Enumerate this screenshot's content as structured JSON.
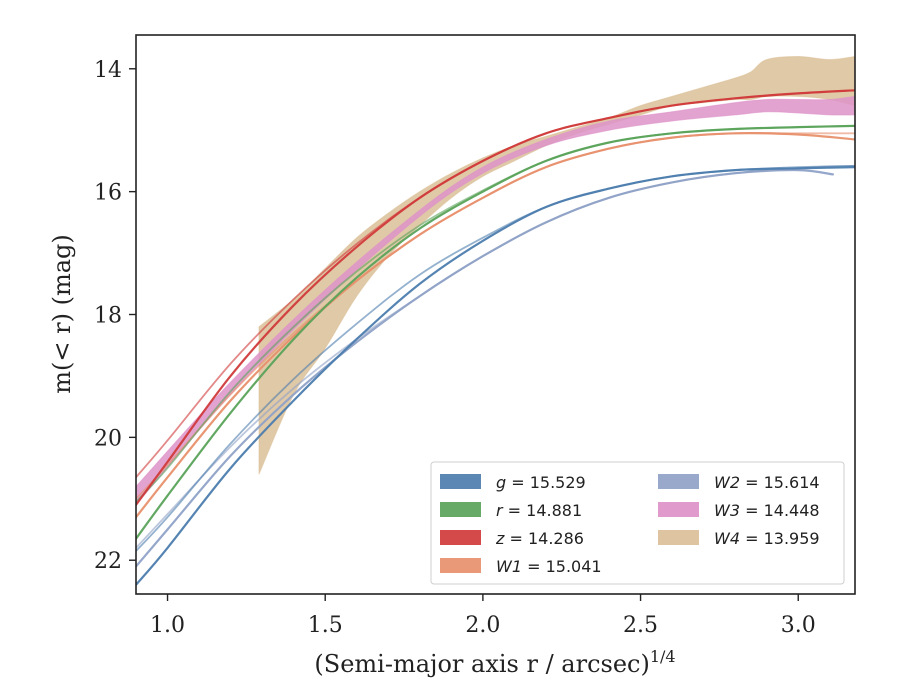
{
  "chart_data": {
    "type": "line",
    "title": "",
    "xlabel": "(Semi-major axis r / arcsec)",
    "xlabel_sup": "1/4",
    "ylabel": "m(< r) (mag)",
    "xlim": [
      0.9,
      3.18
    ],
    "ylim": [
      22.55,
      13.45
    ],
    "y_inverted": true,
    "x_ticks": [
      1.0,
      1.5,
      2.0,
      2.5,
      3.0
    ],
    "x_tick_labels": [
      "1.0",
      "1.5",
      "2.0",
      "2.5",
      "3.0"
    ],
    "y_ticks": [
      14,
      16,
      18,
      20,
      22
    ],
    "y_tick_labels": [
      "14",
      "16",
      "18",
      "20",
      "22"
    ],
    "grid": false,
    "legend_position": "lower-right",
    "series": [
      {
        "name": "g = 15.529",
        "label_var": "g",
        "label_val": "= 15.529",
        "color": "#4c7dae",
        "band": false,
        "curves": [
          {
            "x": [
              0.9,
              1.0,
              1.2,
              1.4,
              1.6,
              1.8,
              2.0,
              2.2,
              2.4,
              2.6,
              2.8,
              3.0,
              3.18
            ],
            "y": [
              22.4,
              21.8,
              20.5,
              19.4,
              18.4,
              17.5,
              16.8,
              16.25,
              15.95,
              15.75,
              15.65,
              15.62,
              15.6
            ]
          },
          {
            "x": [
              0.9,
              1.0,
              1.2,
              1.4,
              1.6,
              1.8,
              2.0,
              2.2,
              2.4,
              2.6,
              2.8,
              3.0,
              3.18
            ],
            "y": [
              21.85,
              21.3,
              20.1,
              19.05,
              18.15,
              17.35,
              16.75,
              16.25,
              15.95,
              15.75,
              15.65,
              15.6,
              15.58
            ]
          }
        ]
      },
      {
        "name": "r = 14.881",
        "label_var": "r",
        "label_val": "= 14.881",
        "color": "#5aa35a",
        "band": false,
        "curves": [
          {
            "x": [
              0.9,
              1.0,
              1.2,
              1.4,
              1.6,
              1.8,
              2.0,
              2.2,
              2.4,
              2.6,
              2.8,
              3.0,
              3.18
            ],
            "y": [
              21.65,
              20.95,
              19.6,
              18.4,
              17.4,
              16.6,
              16.0,
              15.5,
              15.2,
              15.05,
              14.98,
              14.95,
              14.93
            ]
          },
          {
            "x": [
              0.9,
              1.0,
              1.2,
              1.4,
              1.6,
              1.8,
              2.0,
              2.2,
              2.4,
              2.6,
              2.8,
              3.0,
              3.18
            ],
            "y": [
              21.05,
              20.5,
              19.25,
              18.2,
              17.3,
              16.55,
              15.98,
              15.5,
              15.2,
              15.05,
              14.98,
              14.95,
              14.93
            ]
          }
        ]
      },
      {
        "name": "z = 14.286",
        "label_var": "z",
        "label_val": "= 14.286",
        "color": "#d03b3b",
        "band": false,
        "curves": [
          {
            "x": [
              0.9,
              1.0,
              1.2,
              1.4,
              1.6,
              1.8,
              2.0,
              2.2,
              2.4,
              2.6,
              2.8,
              3.0,
              3.18
            ],
            "y": [
              21.1,
              20.4,
              19.0,
              17.85,
              16.9,
              16.1,
              15.5,
              15.05,
              14.8,
              14.6,
              14.48,
              14.4,
              14.35
            ]
          },
          {
            "x": [
              0.9,
              1.0,
              1.2,
              1.4,
              1.6,
              1.8,
              2.0,
              2.2,
              2.4,
              2.6,
              2.8,
              3.0,
              3.18
            ],
            "y": [
              20.65,
              20.05,
              18.8,
              17.75,
              16.85,
              16.1,
              15.5,
              15.05,
              14.8,
              14.6,
              14.48,
              14.4,
              14.35
            ]
          }
        ]
      },
      {
        "name": "W1 = 15.041",
        "label_var": "W1",
        "label_val": "= 15.041",
        "color": "#e8906c",
        "band": false,
        "curves": [
          {
            "x": [
              0.9,
              1.0,
              1.2,
              1.4,
              1.6,
              1.8,
              2.0,
              2.2,
              2.4,
              2.6,
              2.8,
              3.0,
              3.18
            ],
            "y": [
              21.3,
              20.65,
              19.4,
              18.35,
              17.45,
              16.7,
              16.1,
              15.6,
              15.3,
              15.12,
              15.05,
              15.07,
              15.15
            ]
          },
          {
            "x": [
              0.9,
              1.0,
              1.2,
              1.4,
              1.6,
              1.8,
              2.0,
              2.2,
              2.4,
              2.6,
              2.8,
              3.0,
              3.18
            ],
            "y": [
              21.0,
              20.45,
              19.3,
              18.3,
              17.45,
              16.7,
              16.1,
              15.6,
              15.3,
              15.12,
              15.05,
              15.05,
              15.05
            ]
          }
        ]
      },
      {
        "name": "W2 = 15.614",
        "label_var": "W2",
        "label_val": "= 15.614",
        "color": "#8fa2c7",
        "band": false,
        "curves": [
          {
            "x": [
              0.9,
              1.0,
              1.2,
              1.4,
              1.6,
              1.8,
              2.0,
              2.2,
              2.4,
              2.6,
              2.8,
              3.0,
              3.11
            ],
            "y": [
              22.1,
              21.5,
              20.3,
              19.3,
              18.45,
              17.7,
              17.05,
              16.5,
              16.1,
              15.85,
              15.7,
              15.65,
              15.72
            ]
          },
          {
            "x": [
              0.9,
              1.0,
              1.2,
              1.4,
              1.6,
              1.8,
              2.0,
              2.2,
              2.4,
              2.6,
              2.8,
              3.0,
              3.18
            ],
            "y": [
              21.8,
              21.25,
              20.15,
              19.2,
              18.4,
              17.7,
              17.05,
              16.5,
              16.1,
              15.85,
              15.7,
              15.62,
              15.58
            ]
          }
        ]
      },
      {
        "name": "W3 = 14.448",
        "label_var": "W3",
        "label_val": "= 14.448",
        "color": "#dd93c8",
        "band": true,
        "band_x": [
          0.9,
          1.2,
          1.5,
          1.8,
          2.0,
          2.2,
          2.4,
          2.6,
          2.8,
          2.9,
          3.0,
          3.1,
          3.18
        ],
        "band_lo": [
          20.8,
          19.1,
          17.6,
          16.3,
          15.6,
          15.15,
          14.85,
          14.7,
          14.55,
          14.5,
          14.5,
          14.5,
          14.45
        ],
        "band_hi": [
          21.1,
          19.3,
          17.75,
          16.4,
          15.7,
          15.25,
          15.0,
          14.85,
          14.75,
          14.7,
          14.72,
          14.75,
          14.75
        ]
      },
      {
        "name": "W4 = 13.959",
        "label_var": "W4",
        "label_val": "= 13.959",
        "color": "#dbbf98",
        "band": true,
        "band_x": [
          1.29,
          1.4,
          1.5,
          1.6,
          1.7,
          1.8,
          1.9,
          2.0,
          2.1,
          2.2,
          2.3,
          2.4,
          2.5,
          2.6,
          2.7,
          2.8,
          2.85,
          2.9,
          3.0,
          3.1,
          3.18
        ],
        "band_lo": [
          18.2,
          17.75,
          17.25,
          16.75,
          16.35,
          16.0,
          15.7,
          15.45,
          15.25,
          15.1,
          14.95,
          14.8,
          14.6,
          14.45,
          14.3,
          14.15,
          14.05,
          13.85,
          13.8,
          13.85,
          13.8
        ],
        "band_hi": [
          20.6,
          19.3,
          18.55,
          17.7,
          17.05,
          16.55,
          16.1,
          15.75,
          15.5,
          15.25,
          15.05,
          14.9,
          14.75,
          14.6,
          14.55,
          14.5,
          14.5,
          14.45,
          14.45,
          14.5,
          14.6
        ]
      }
    ]
  }
}
